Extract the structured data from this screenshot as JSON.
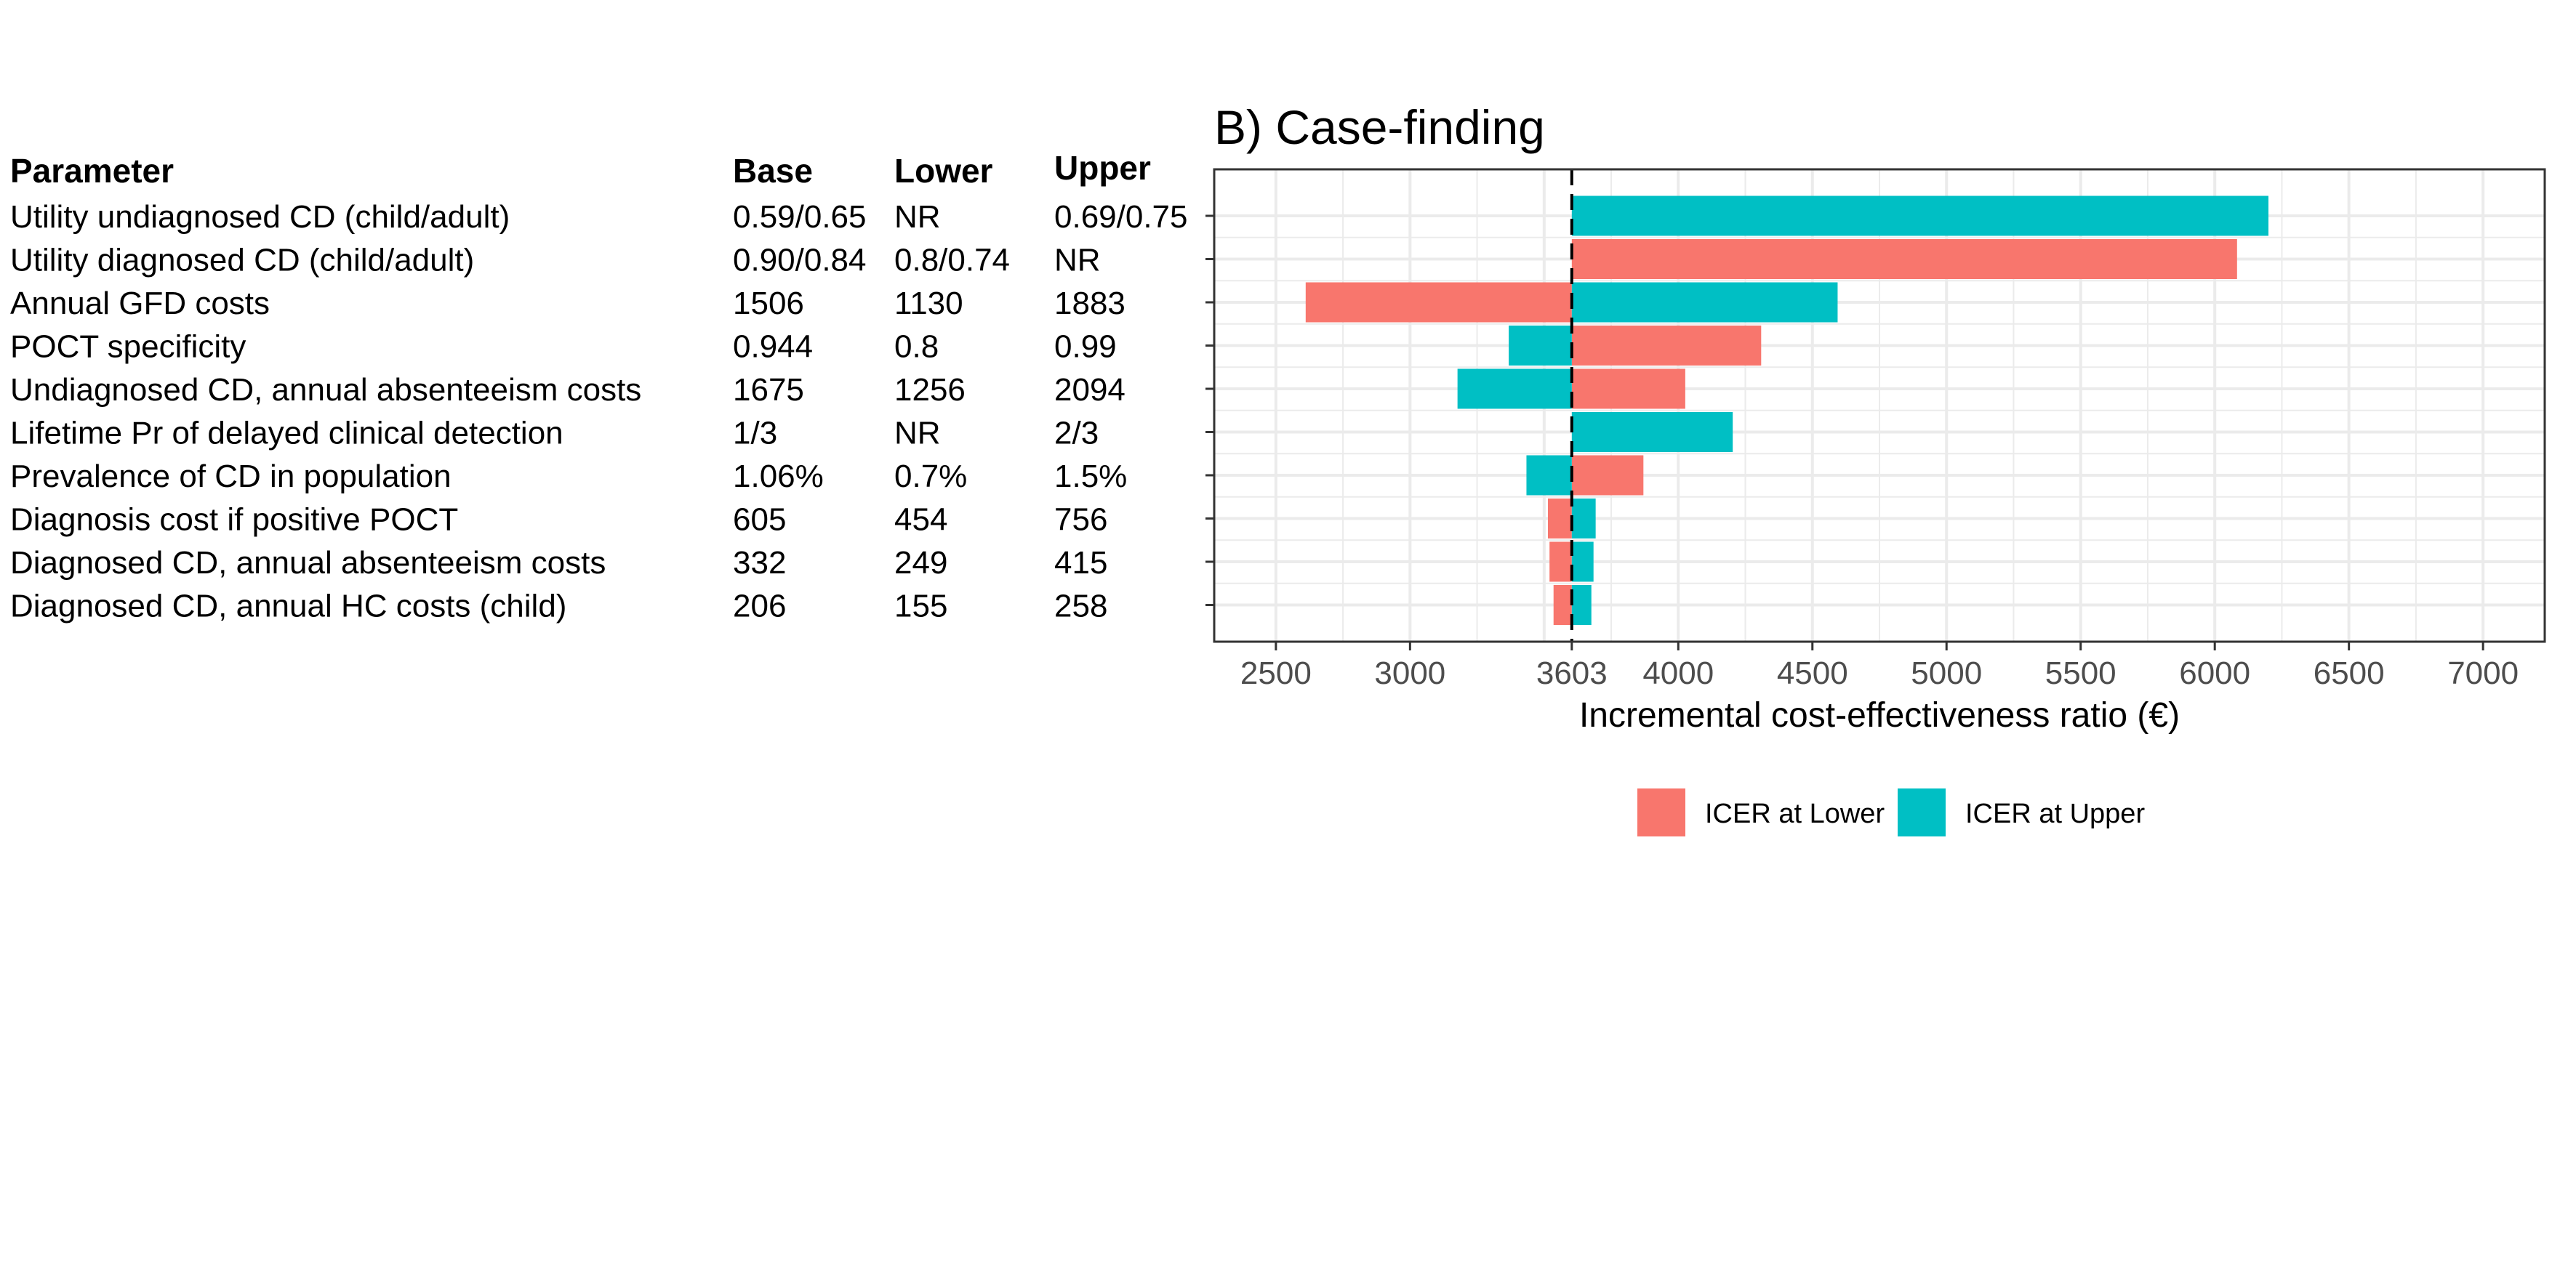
{
  "table": {
    "headers": {
      "parameter": "Parameter",
      "base": "Base",
      "lower": "Lower",
      "upper": "Upper"
    },
    "rows": [
      {
        "parameter": "Utility undiagnosed CD (child/adult)",
        "base": "0.59/0.65",
        "lower": "NR",
        "upper": "0.69/0.75"
      },
      {
        "parameter": "Utility diagnosed CD (child/adult)",
        "base": "0.90/0.84",
        "lower": "0.8/0.74",
        "upper": "NR"
      },
      {
        "parameter": "Annual GFD costs",
        "base": "1506",
        "lower": "1130",
        "upper": "1883"
      },
      {
        "parameter": "POCT specificity",
        "base": "0.944",
        "lower": "0.8",
        "upper": "0.99"
      },
      {
        "parameter": "Undiagnosed CD, annual absenteeism costs",
        "base": "1675",
        "lower": "1256",
        "upper": "2094"
      },
      {
        "parameter": "Lifetime Pr of delayed clinical detection",
        "base": "1/3",
        "lower": "NR",
        "upper": "2/3"
      },
      {
        "parameter": "Prevalence of CD in population",
        "base": "1.06%",
        "lower": "0.7%",
        "upper": "1.5%"
      },
      {
        "parameter": "Diagnosis cost if positive POCT",
        "base": "605",
        "lower": "454",
        "upper": "756"
      },
      {
        "parameter": "Diagnosed CD, annual absenteeism costs",
        "base": "332",
        "lower": "249",
        "upper": "415"
      },
      {
        "parameter": "Diagnosed CD, annual HC costs (child)",
        "base": "206",
        "lower": "155",
        "upper": "258"
      }
    ]
  },
  "chart_data": {
    "type": "bar",
    "orientation": "horizontal",
    "title": "B) Case-finding",
    "xlabel": "Incremental cost-effectiveness ratio (€)",
    "ylabel": "",
    "xlim": [
      2270,
      7230
    ],
    "xticks": [
      2500,
      3000,
      3603,
      4000,
      4500,
      5000,
      5500,
      6000,
      6500,
      7000
    ],
    "baseline": 3603,
    "grid": true,
    "legend_position": "bottom",
    "colors": {
      "lower": "#F8766D",
      "upper": "#00BFC4"
    },
    "series": [
      {
        "name": "ICER at Lower",
        "key": "lower",
        "values": [
          null,
          6083,
          2611,
          4309,
          4026,
          null,
          3870,
          3514,
          3520,
          3535
        ]
      },
      {
        "name": "ICER at Upper",
        "key": "upper",
        "values": [
          6200,
          null,
          4594,
          3368,
          3177,
          4203,
          3434,
          3692,
          3684,
          3676
        ]
      }
    ]
  }
}
